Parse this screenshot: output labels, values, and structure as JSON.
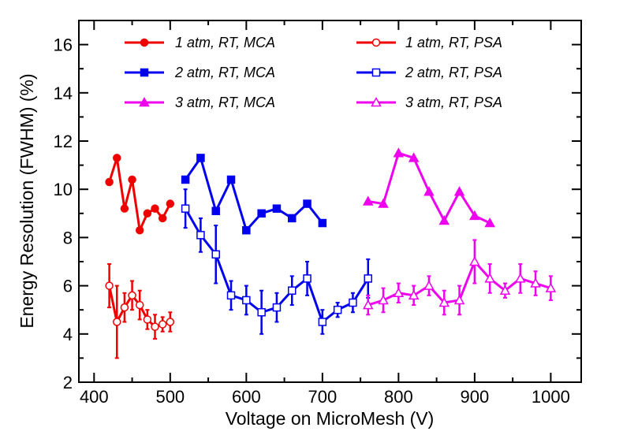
{
  "chart_data": {
    "type": "line",
    "title": "",
    "xlabel": "Voltage on MicroMesh (V)",
    "ylabel": "Energy Resolution (FWHM) (%)",
    "xlim": [
      380,
      1040
    ],
    "ylim": [
      2,
      17
    ],
    "xticks": [
      400,
      500,
      600,
      700,
      800,
      900,
      1000
    ],
    "yticks": [
      2,
      4,
      6,
      8,
      10,
      12,
      14,
      16
    ],
    "grid": false,
    "legend_position": "top",
    "series": [
      {
        "name": "1 atm, RT, MCA",
        "color": "#ee0000",
        "marker": "circle",
        "filled": true,
        "x": [
          420,
          430,
          440,
          450,
          460,
          470,
          480,
          490,
          500
        ],
        "y": [
          10.3,
          11.3,
          9.2,
          10.4,
          8.3,
          9.0,
          9.2,
          8.8,
          9.4
        ]
      },
      {
        "name": "1 atm, RT, PSA",
        "color": "#ee0000",
        "marker": "circle",
        "filled": false,
        "x": [
          420,
          430,
          440,
          450,
          460,
          470,
          480,
          490,
          500
        ],
        "y": [
          6.0,
          4.5,
          5.1,
          5.6,
          5.2,
          4.6,
          4.3,
          4.4,
          4.5
        ],
        "err": [
          0.9,
          1.5,
          0.6,
          0.6,
          0.6,
          0.4,
          0.5,
          0.3,
          0.4
        ]
      },
      {
        "name": "2 atm, RT, MCA",
        "color": "#0000ee",
        "marker": "square",
        "filled": true,
        "x": [
          520,
          540,
          560,
          580,
          600,
          620,
          640,
          660,
          680,
          700
        ],
        "y": [
          10.4,
          11.3,
          9.1,
          10.4,
          8.3,
          9.0,
          9.2,
          8.8,
          9.4,
          8.6
        ]
      },
      {
        "name": "2 atm, RT, PSA",
        "color": "#0000ee",
        "marker": "square",
        "filled": false,
        "x": [
          520,
          540,
          560,
          580,
          600,
          620,
          640,
          660,
          680,
          700,
          720,
          740,
          760
        ],
        "y": [
          9.2,
          8.1,
          7.3,
          5.6,
          5.4,
          4.9,
          5.1,
          5.8,
          6.3,
          4.5,
          5.0,
          5.3,
          6.3
        ],
        "err": [
          0.8,
          0.7,
          1.2,
          0.6,
          0.6,
          0.9,
          0.6,
          0.6,
          0.7,
          0.5,
          0.3,
          0.4,
          0.8
        ]
      },
      {
        "name": "3 atm, RT, MCA",
        "color": "#ee00ee",
        "marker": "triangle",
        "filled": true,
        "x": [
          760,
          780,
          800,
          820,
          840,
          860,
          880,
          900,
          920
        ],
        "y": [
          9.5,
          9.4,
          11.5,
          11.3,
          9.9,
          8.7,
          9.9,
          8.9,
          8.6
        ]
      },
      {
        "name": "3 atm, RT, PSA",
        "color": "#ee00ee",
        "marker": "triangle",
        "filled": false,
        "x": [
          760,
          780,
          800,
          820,
          840,
          860,
          880,
          900,
          920,
          940,
          960,
          980,
          1000
        ],
        "y": [
          5.2,
          5.4,
          5.7,
          5.6,
          6.0,
          5.3,
          5.4,
          7.0,
          6.3,
          5.8,
          6.3,
          6.1,
          5.9
        ],
        "err": [
          0.4,
          0.5,
          0.4,
          0.4,
          0.4,
          0.5,
          0.6,
          0.9,
          0.6,
          0.3,
          0.6,
          0.5,
          0.5
        ]
      }
    ]
  }
}
